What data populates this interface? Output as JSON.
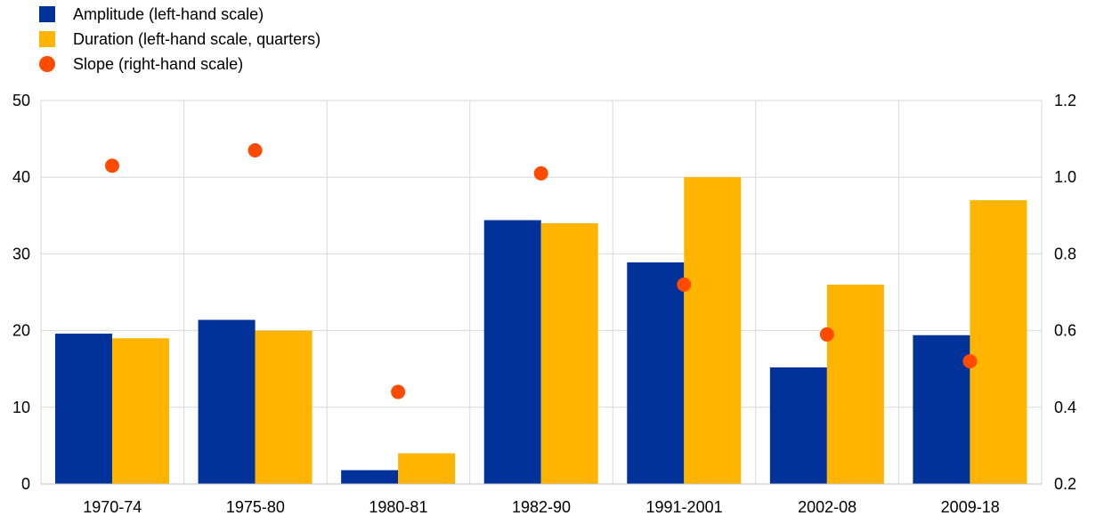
{
  "chart_data": {
    "type": "bar",
    "categories": [
      "1970-74",
      "1975-80",
      "1980-81",
      "1982-90",
      "1991-2001",
      "2002-08",
      "2009-18"
    ],
    "series": [
      {
        "name": "Amplitude (left-hand scale)",
        "kind": "bar",
        "axis": "left",
        "color": "#003299",
        "values": [
          19.6,
          21.4,
          1.8,
          34.4,
          28.9,
          15.2,
          19.4
        ]
      },
      {
        "name": "Duration (left-hand scale, quarters)",
        "kind": "bar",
        "axis": "left",
        "color": "#FFB400",
        "values": [
          19,
          20,
          4,
          34,
          40,
          26,
          37
        ]
      },
      {
        "name": "Slope (right-hand scale)",
        "kind": "scatter",
        "axis": "right",
        "color": "#FF4B00",
        "values": [
          1.03,
          1.07,
          0.44,
          1.01,
          0.72,
          0.59,
          0.52
        ]
      }
    ],
    "y_left": {
      "min": 0,
      "max": 50,
      "ticks": [
        "0",
        "10",
        "20",
        "30",
        "40",
        "50"
      ]
    },
    "y_right": {
      "min": 0.2,
      "max": 1.2,
      "ticks": [
        "0.2",
        "0.4",
        "0.6",
        "0.8",
        "1.0",
        "1.2"
      ]
    },
    "grid": true,
    "legend_position": "top-left",
    "title": "",
    "xlabel": "",
    "ylabel": ""
  }
}
